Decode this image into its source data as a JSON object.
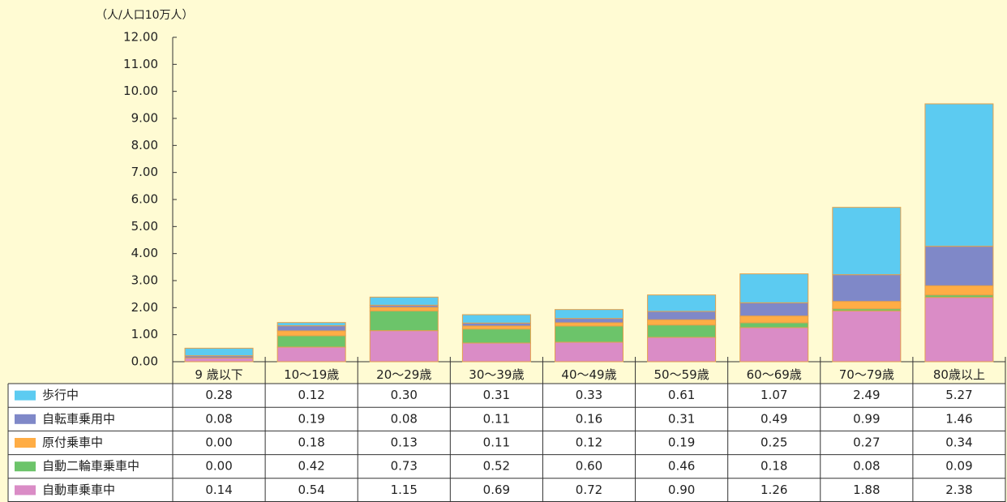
{
  "chart_data": {
    "type": "stacked_bar",
    "y_label": "（人/人口10万人）",
    "categories": [
      "9 歳以下",
      "10～19歳",
      "20～29歳",
      "30～39歳",
      "40～49歳",
      "50～59歳",
      "60～69歳",
      "70～79歳",
      "80歳以上"
    ],
    "series": [
      {
        "name": "歩行中",
        "color": "#5ccbf1",
        "values": [
          0.28,
          0.12,
          0.3,
          0.31,
          0.33,
          0.61,
          1.07,
          2.49,
          5.27
        ],
        "value_labels": [
          "0.28",
          "0.12",
          "0.30",
          "0.31",
          "0.33",
          "0.61",
          "1.07",
          "2.49",
          "5.27"
        ]
      },
      {
        "name": "自転車乗用中",
        "color": "#7f88c8",
        "values": [
          0.08,
          0.19,
          0.08,
          0.11,
          0.16,
          0.31,
          0.49,
          0.99,
          1.46
        ],
        "value_labels": [
          "0.08",
          "0.19",
          "0.08",
          "0.11",
          "0.16",
          "0.31",
          "0.49",
          "0.99",
          "1.46"
        ]
      },
      {
        "name": "原付乗車中",
        "color": "#ffad45",
        "values": [
          0.0,
          0.18,
          0.13,
          0.11,
          0.12,
          0.19,
          0.25,
          0.27,
          0.34
        ],
        "value_labels": [
          "0.00",
          "0.18",
          "0.13",
          "0.11",
          "0.12",
          "0.19",
          "0.25",
          "0.27",
          "0.34"
        ]
      },
      {
        "name": "自動二輪車乗車中",
        "color": "#6cc46a",
        "values": [
          0.0,
          0.42,
          0.73,
          0.52,
          0.6,
          0.46,
          0.18,
          0.08,
          0.09
        ],
        "value_labels": [
          "0.00",
          "0.42",
          "0.73",
          "0.52",
          "0.60",
          "0.46",
          "0.18",
          "0.08",
          "0.09"
        ]
      },
      {
        "name": "自動車乗車中",
        "color": "#da8cc6",
        "values": [
          0.14,
          0.54,
          1.15,
          0.69,
          0.72,
          0.9,
          1.26,
          1.88,
          2.38
        ],
        "value_labels": [
          "0.14",
          "0.54",
          "1.15",
          "0.69",
          "0.72",
          "0.90",
          "1.26",
          "1.88",
          "2.38"
        ]
      }
    ],
    "ylim": [
      0,
      12
    ],
    "yticks": [
      {
        "value": 0,
        "label": "0.00"
      },
      {
        "value": 1,
        "label": "1.00"
      },
      {
        "value": 2,
        "label": "2.00"
      },
      {
        "value": 3,
        "label": "3.00"
      },
      {
        "value": 4,
        "label": "4.00"
      },
      {
        "value": 5,
        "label": "5.00"
      },
      {
        "value": 6,
        "label": "6.00"
      },
      {
        "value": 7,
        "label": "7.00"
      },
      {
        "value": 8,
        "label": "8.00"
      },
      {
        "value": 9,
        "label": "9.00"
      },
      {
        "value": 10,
        "label": "10.00"
      },
      {
        "value": 11,
        "label": "11.00"
      },
      {
        "value": 12,
        "label": "12.00"
      }
    ]
  }
}
